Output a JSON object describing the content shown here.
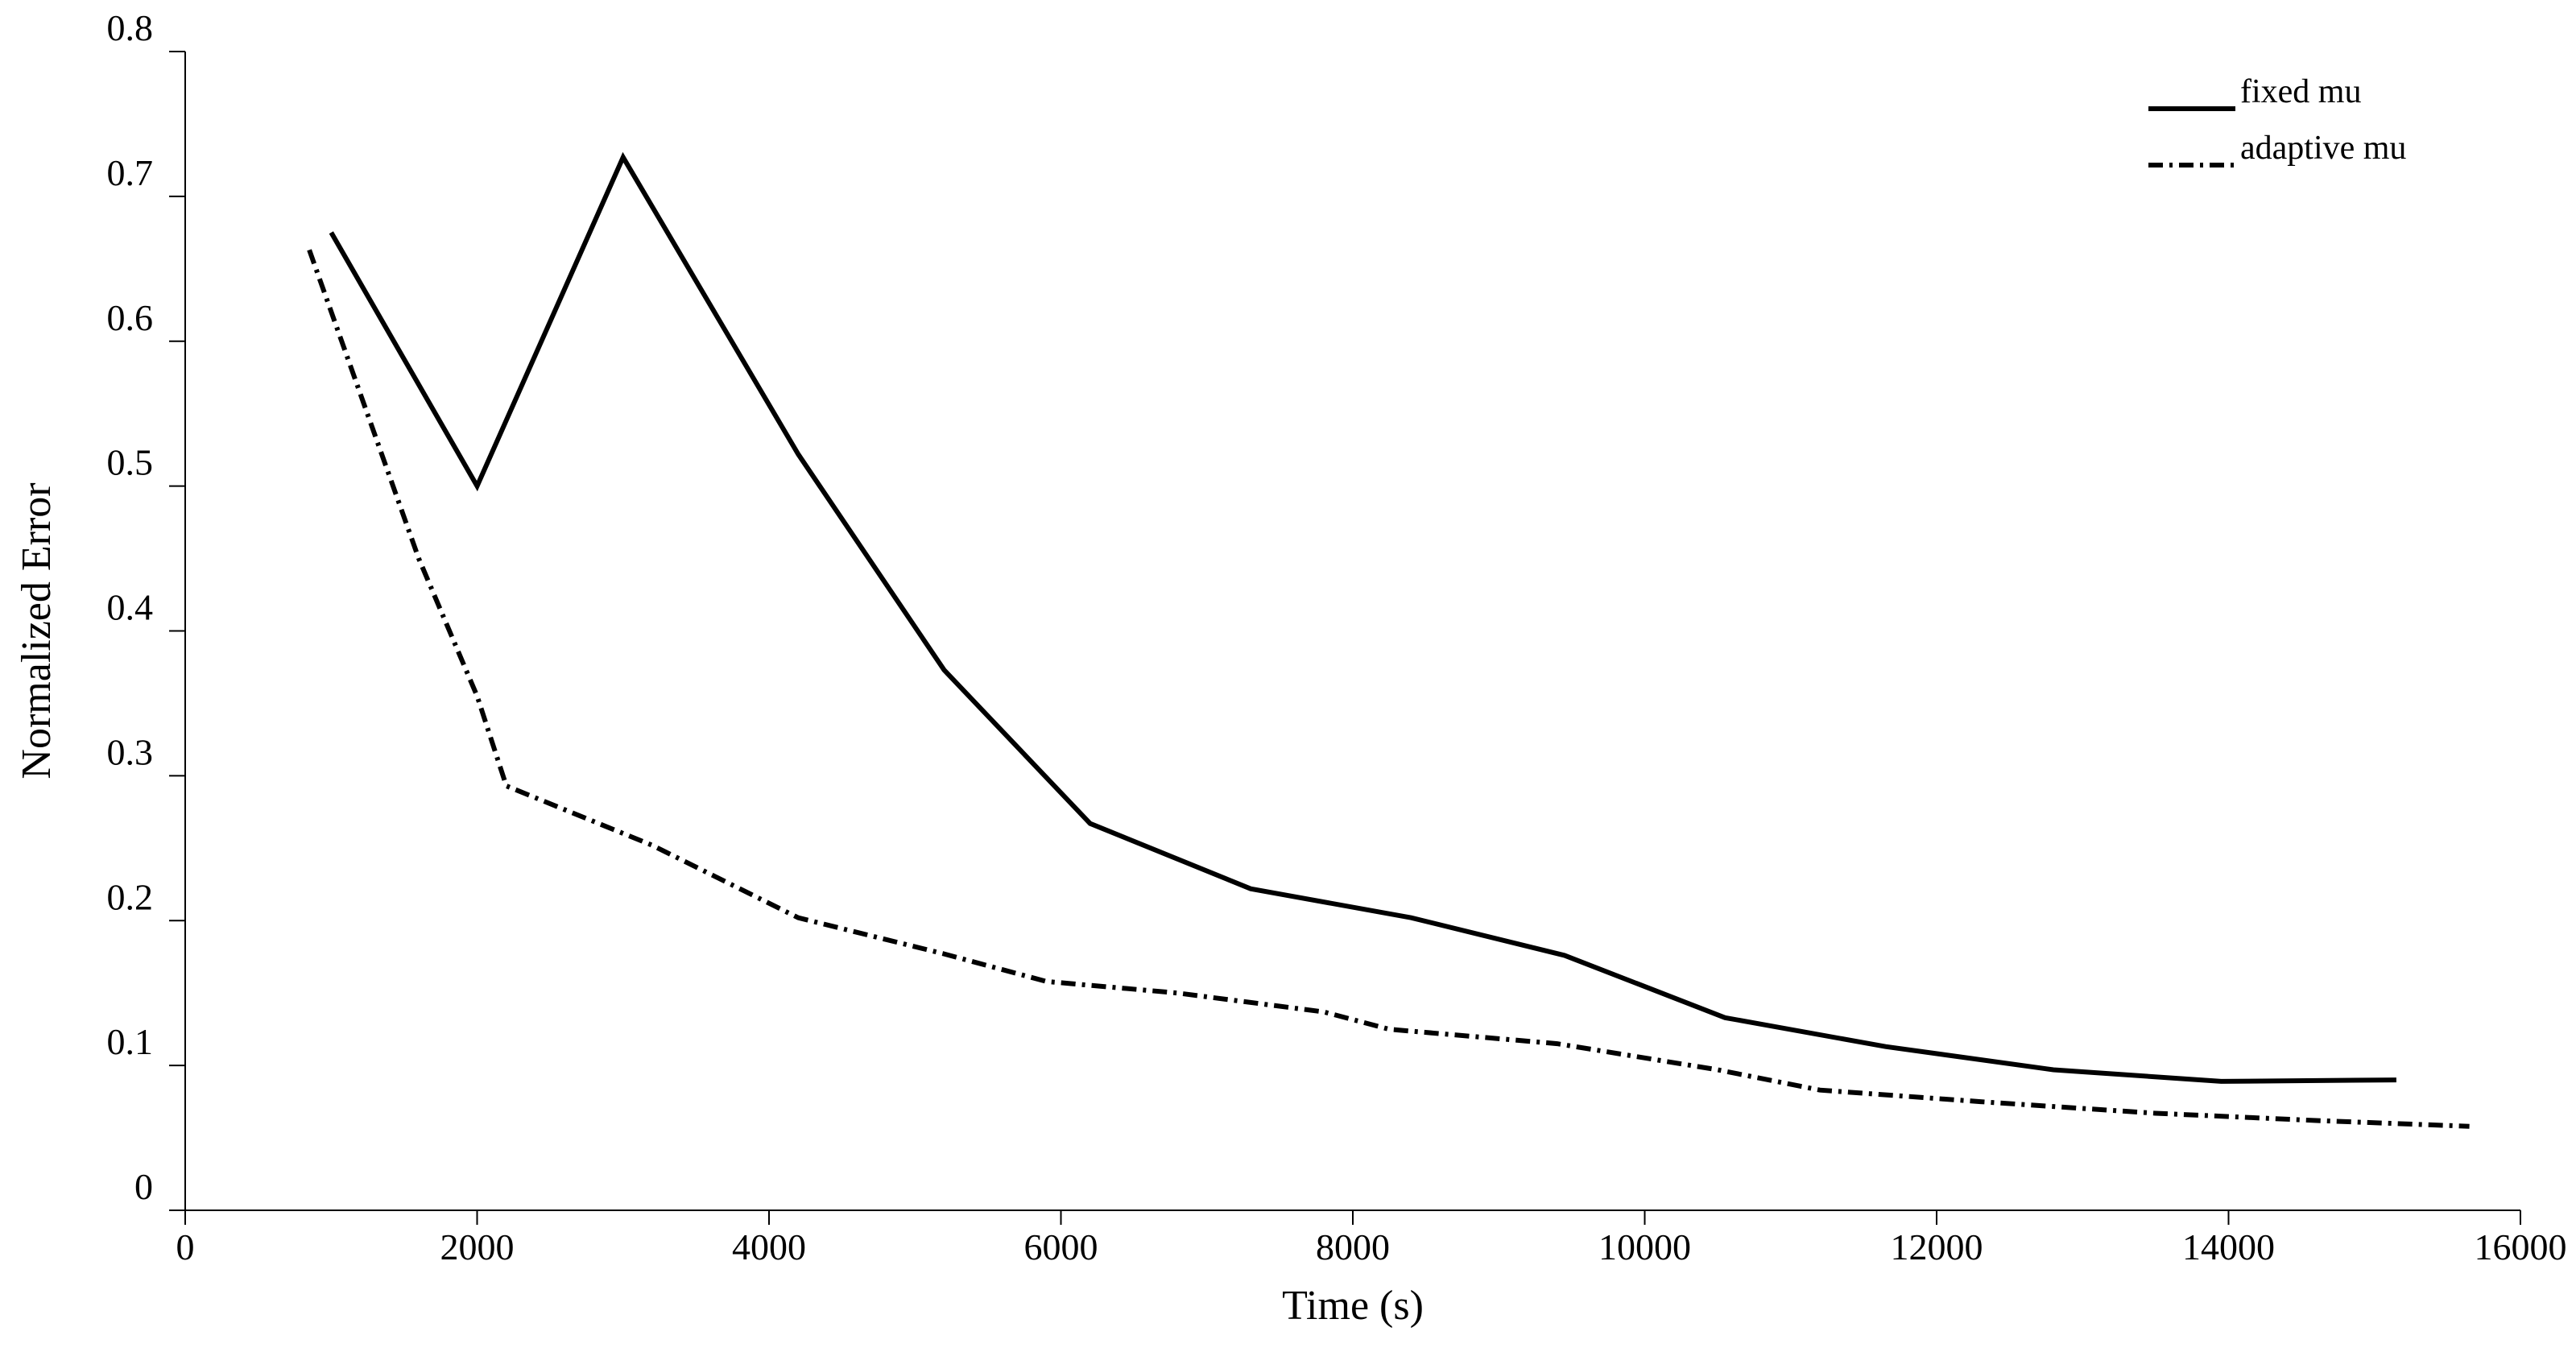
{
  "chart_data": {
    "type": "line",
    "title": "",
    "xlabel": "Time (s)",
    "ylabel": "Normalized Error",
    "xlim": [
      0,
      16000
    ],
    "ylim": [
      0,
      0.8
    ],
    "xticks": [
      0,
      2000,
      4000,
      6000,
      8000,
      10000,
      12000,
      14000,
      16000
    ],
    "yticks": [
      0,
      0.1,
      0.2,
      0.3,
      0.4,
      0.5,
      0.6,
      0.7,
      0.8
    ],
    "xtick_labels": [
      "0",
      "2000",
      "4000",
      "6000",
      "8000",
      "10000",
      "12000",
      "14000",
      "16000"
    ],
    "ytick_labels": [
      "0",
      "0.1",
      "0.2",
      "0.3",
      "0.4",
      "0.5",
      "0.6",
      "0.7",
      "0.8"
    ],
    "grid": false,
    "legend_position": "top-right",
    "series": [
      {
        "name": "fixed mu",
        "style": "solid",
        "color": "#000000",
        "x": [
          1000,
          2000,
          3000,
          4200,
          5200,
          6200,
          7300,
          8400,
          9450,
          10550,
          11650,
          12800,
          13950,
          15150
        ],
        "y": [
          0.675,
          0.5,
          0.727,
          0.522,
          0.373,
          0.267,
          0.222,
          0.202,
          0.176,
          0.133,
          0.113,
          0.097,
          0.089,
          0.09
        ]
      },
      {
        "name": "adaptive mu",
        "style": "dash-dot",
        "color": "#000000",
        "x": [
          850,
          1600,
          2000,
          2200,
          3200,
          4200,
          5200,
          5900,
          6800,
          7800,
          8250,
          9400,
          10500,
          11200,
          12300,
          13500,
          14600,
          15650
        ],
        "y": [
          0.663,
          0.45,
          0.355,
          0.293,
          0.252,
          0.202,
          0.177,
          0.158,
          0.15,
          0.137,
          0.125,
          0.115,
          0.097,
          0.083,
          0.075,
          0.067,
          0.062,
          0.058
        ]
      }
    ]
  }
}
